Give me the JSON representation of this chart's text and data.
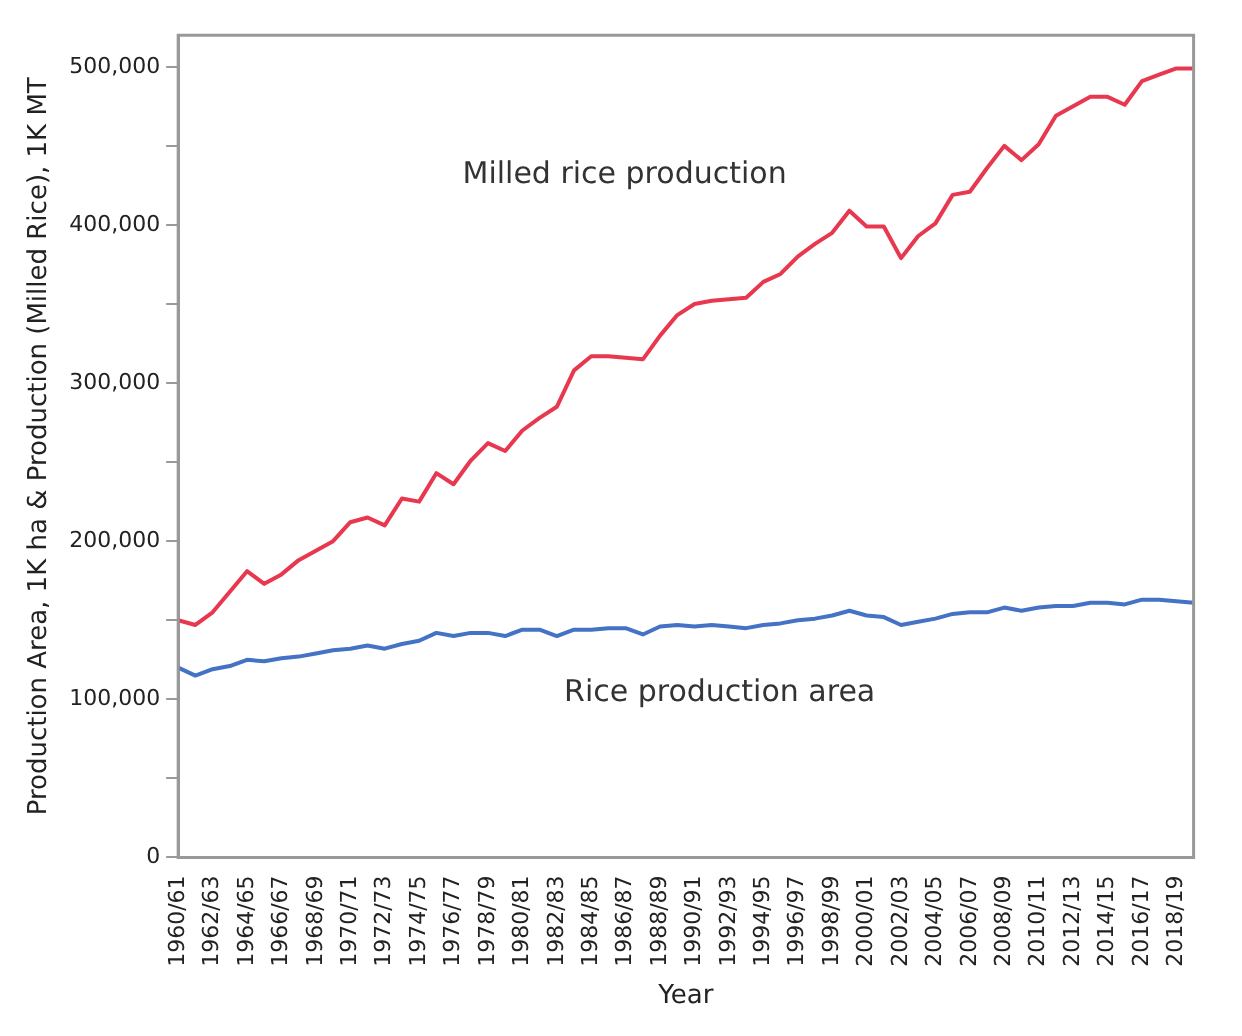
{
  "chart_data": {
    "type": "line",
    "xlabel": "Year",
    "ylabel": "Production Area, 1K ha & Production (Milled Rice), 1K MT",
    "categories": [
      "1960/61",
      null,
      "1962/63",
      null,
      "1964/65",
      null,
      "1966/67",
      null,
      "1968/69",
      null,
      "1970/71",
      null,
      "1972/73",
      null,
      "1974/75",
      null,
      "1976/77",
      null,
      "1978/79",
      null,
      "1980/81",
      null,
      "1982/83",
      null,
      "1984/85",
      null,
      "1986/87",
      null,
      "1988/89",
      null,
      "1990/91",
      null,
      "1992/93",
      null,
      "1994/95",
      null,
      "1996/97",
      null,
      "1998/99",
      null,
      "2000/01",
      null,
      "2002/03",
      null,
      "2004/05",
      null,
      "2006/07",
      null,
      "2008/09",
      null,
      "2010/11",
      null,
      "2012/13",
      null,
      "2014/15",
      null,
      "2016/17",
      null,
      "2018/19",
      null
    ],
    "series": [
      {
        "name": "Milled rice production",
        "color": "#e8384f",
        "values": [
          150000,
          147000,
          155000,
          168000,
          181000,
          173000,
          179000,
          188000,
          194000,
          200000,
          212000,
          215000,
          210000,
          227000,
          225000,
          243000,
          236000,
          251000,
          262000,
          257000,
          270000,
          278000,
          285000,
          308000,
          317000,
          317000,
          316000,
          315000,
          330000,
          343000,
          350000,
          352000,
          353000,
          354000,
          364000,
          369000,
          380000,
          388000,
          395000,
          409000,
          399000,
          399000,
          379000,
          393000,
          401000,
          419000,
          421000,
          436000,
          450000,
          441000,
          451000,
          469000,
          475000,
          481000,
          481000,
          476000,
          491000,
          495000,
          499000,
          499000
        ]
      },
      {
        "name": "Rice production area",
        "color": "#4472c4",
        "values": [
          120000,
          115000,
          119000,
          121000,
          125000,
          124000,
          126000,
          127000,
          129000,
          131000,
          132000,
          134000,
          132000,
          135000,
          137000,
          142000,
          140000,
          142000,
          142000,
          140000,
          144000,
          144000,
          140000,
          144000,
          144000,
          145000,
          145000,
          141000,
          146000,
          147000,
          146000,
          147000,
          146000,
          145000,
          147000,
          148000,
          150000,
          151000,
          153000,
          156000,
          153000,
          152000,
          147000,
          149000,
          151000,
          154000,
          155000,
          155000,
          158000,
          156000,
          158000,
          159000,
          159000,
          161000,
          161000,
          160000,
          163000,
          163000,
          162000,
          161000
        ]
      }
    ],
    "ylim": [
      0,
      520000
    ],
    "yticks": [
      0,
      {
        "value": 50000,
        "label": null
      },
      {
        "value": 100000,
        "label": "100,000"
      },
      {
        "value": 150000,
        "label": null
      },
      {
        "value": 200000,
        "label": "200,000"
      },
      {
        "value": 250000,
        "label": null
      },
      {
        "value": 300000,
        "label": "300,000"
      },
      {
        "value": 350000,
        "label": null
      },
      {
        "value": 400000,
        "label": "400,000"
      },
      {
        "value": 450000,
        "label": null
      },
      {
        "value": 500000,
        "label": "500,000"
      }
    ],
    "grid": false,
    "legend": false,
    "marker": "none",
    "line_style": "solid"
  }
}
